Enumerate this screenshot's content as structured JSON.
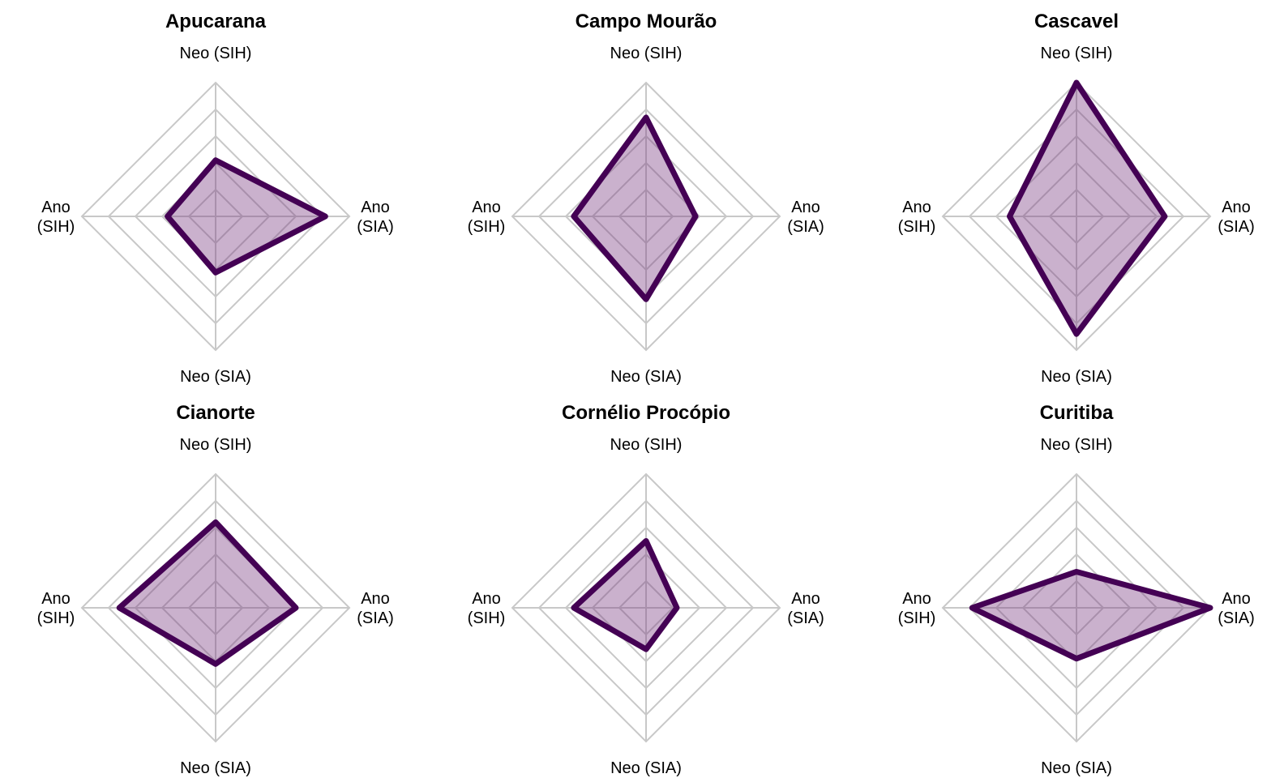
{
  "colors": {
    "grid": "#c8c8c8",
    "series_line": "#440154",
    "series_fill": "#7a3d82",
    "series_fill_opacity": 0.4
  },
  "chart_data": [
    {
      "type": "radar",
      "title": "Apucarana",
      "axes": [
        {
          "key": "neo_sih",
          "label": [
            "Neo (SIH)"
          ]
        },
        {
          "key": "ano_sia",
          "label": [
            "Ano",
            "(SIA)"
          ]
        },
        {
          "key": "neo_sia",
          "label": [
            "Neo (SIA)"
          ]
        },
        {
          "key": "ano_sih",
          "label": [
            "Ano",
            "(SIH)"
          ]
        }
      ],
      "rmax": 5,
      "grid_levels": 5,
      "values": [
        2.1,
        4.1,
        2.1,
        1.8
      ]
    },
    {
      "type": "radar",
      "title": "Campo Mourão",
      "axes": [
        {
          "key": "neo_sih",
          "label": [
            "Neo (SIH)"
          ]
        },
        {
          "key": "ano_sia",
          "label": [
            "Ano",
            "(SIA)"
          ]
        },
        {
          "key": "neo_sia",
          "label": [
            "Neo (SIA)"
          ]
        },
        {
          "key": "ano_sih",
          "label": [
            "Ano",
            "(SIH)"
          ]
        }
      ],
      "rmax": 5,
      "grid_levels": 5,
      "values": [
        3.7,
        1.85,
        3.1,
        2.7
      ]
    },
    {
      "type": "radar",
      "title": "Cascavel",
      "axes": [
        {
          "key": "neo_sih",
          "label": [
            "Neo (SIH)"
          ]
        },
        {
          "key": "ano_sia",
          "label": [
            "Ano",
            "(SIA)"
          ]
        },
        {
          "key": "neo_sia",
          "label": [
            "Neo (SIA)"
          ]
        },
        {
          "key": "ano_sih",
          "label": [
            "Ano",
            "(SIH)"
          ]
        }
      ],
      "rmax": 5,
      "grid_levels": 5,
      "values": [
        5.0,
        3.3,
        4.4,
        2.5
      ]
    },
    {
      "type": "radar",
      "title": "Cianorte",
      "axes": [
        {
          "key": "neo_sih",
          "label": [
            "Neo (SIH)"
          ]
        },
        {
          "key": "ano_sia",
          "label": [
            "Ano",
            "(SIA)"
          ]
        },
        {
          "key": "neo_sia",
          "label": [
            "Neo (SIA)"
          ]
        },
        {
          "key": "ano_sih",
          "label": [
            "Ano",
            "(SIH)"
          ]
        }
      ],
      "rmax": 5,
      "grid_levels": 5,
      "values": [
        3.2,
        3.0,
        2.1,
        3.6
      ]
    },
    {
      "type": "radar",
      "title": "Cornélio Procópio",
      "axes": [
        {
          "key": "neo_sih",
          "label": [
            "Neo (SIH)"
          ]
        },
        {
          "key": "ano_sia",
          "label": [
            "Ano",
            "(SIA)"
          ]
        },
        {
          "key": "neo_sia",
          "label": [
            "Neo (SIA)"
          ]
        },
        {
          "key": "ano_sih",
          "label": [
            "Ano",
            "(SIH)"
          ]
        }
      ],
      "rmax": 5,
      "grid_levels": 5,
      "values": [
        2.5,
        1.15,
        1.55,
        2.7
      ]
    },
    {
      "type": "radar",
      "title": "Curitiba",
      "axes": [
        {
          "key": "neo_sih",
          "label": [
            "Neo (SIH)"
          ]
        },
        {
          "key": "ano_sia",
          "label": [
            "Ano",
            "(SIA)"
          ]
        },
        {
          "key": "neo_sia",
          "label": [
            "Neo (SIA)"
          ]
        },
        {
          "key": "ano_sih",
          "label": [
            "Ano",
            "(SIH)"
          ]
        }
      ],
      "rmax": 5,
      "grid_levels": 5,
      "values": [
        1.35,
        5.0,
        1.9,
        3.9
      ]
    }
  ]
}
